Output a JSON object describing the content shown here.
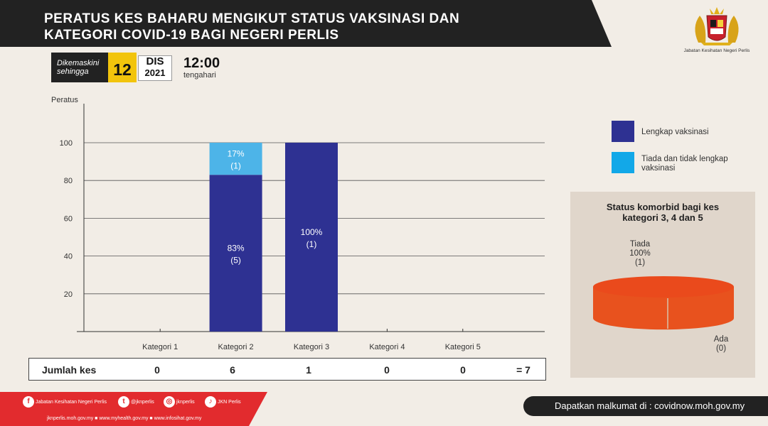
{
  "header": {
    "title_line1": "PERATUS KES BAHARU MENGIKUT STATUS VAKSINASI  DAN",
    "title_line2": "KATEGORI COVID-19 BAGI NEGERI PERLIS"
  },
  "update": {
    "label_line1": "Dikemaskini",
    "label_line2": "sehingga",
    "day": "12",
    "month": "DIS",
    "year": "2021",
    "time": "12:00",
    "ampm": "tengahari"
  },
  "logo": {
    "caption": "Jabatan Kesihatan Negeri Perlis",
    "icon": "coat-of-arms-icon"
  },
  "colors": {
    "full": "#2e3192",
    "partial": "#4db4e8",
    "pie": "#e8521e",
    "banner": "#222222",
    "footer": "#e22b2e",
    "background": "#f2ede6"
  },
  "chart_data": [
    {
      "type": "bar",
      "stacked": true,
      "ylabel": "Peratus",
      "ylim": [
        0,
        100
      ],
      "yticks": [
        "20",
        "40",
        "60",
        "80",
        "100"
      ],
      "categories": [
        "Kategori 1",
        "Kategori 2",
        "Kategori 3",
        "Kategori 4",
        "Kategori 5"
      ],
      "series": [
        {
          "name": "Lengkap vaksinasi",
          "values": [
            0,
            83,
            100,
            0,
            0
          ],
          "counts": [
            0,
            5,
            1,
            0,
            0
          ],
          "labels": [
            "",
            "83%",
            "100%",
            "",
            ""
          ],
          "count_labels": [
            "",
            "(5)",
            "(1)",
            "",
            ""
          ]
        },
        {
          "name": "Tiada dan tidak lengkap vaksinasi",
          "values": [
            0,
            17,
            0,
            0,
            0
          ],
          "counts": [
            0,
            1,
            0,
            0,
            0
          ],
          "labels": [
            "",
            "17%",
            "",
            "",
            ""
          ],
          "count_labels": [
            "",
            "(1)",
            "",
            "",
            ""
          ]
        }
      ],
      "grid": true,
      "legend": "right"
    },
    {
      "type": "pie",
      "title_line1": "Status komorbid bagi kes",
      "title_line2": "kategori 3, 4 dan 5",
      "slices": [
        {
          "name": "Tiada",
          "value": 100,
          "count": 1,
          "pct_label": "100%",
          "count_label": "(1)"
        },
        {
          "name": "Ada",
          "value": 0,
          "count": 0,
          "pct_label": "",
          "count_label": "(0)"
        }
      ]
    }
  ],
  "totals": {
    "label": "Jumlah kes",
    "values": [
      "0",
      "6",
      "1",
      "0",
      "0"
    ],
    "sum": "= 7"
  },
  "footer": {
    "socials": [
      {
        "icon": "facebook-icon",
        "glyph": "f",
        "text": "Jabatan Kesihatan Negeri Perlis"
      },
      {
        "icon": "twitter-icon",
        "glyph": "t",
        "text": "@jknperlis"
      },
      {
        "icon": "instagram-icon",
        "glyph": "◎",
        "text": "jknperlis"
      },
      {
        "icon": "tiktok-icon",
        "glyph": "♪",
        "text": "JKN Perlis"
      }
    ],
    "sites": "jknperlis.moh.gov.my ■ www.myhealth.gov.my ■ www.infosihat.gov.my",
    "right_text": "Dapatkan malkumat di : covidnow.moh.gov.my"
  }
}
